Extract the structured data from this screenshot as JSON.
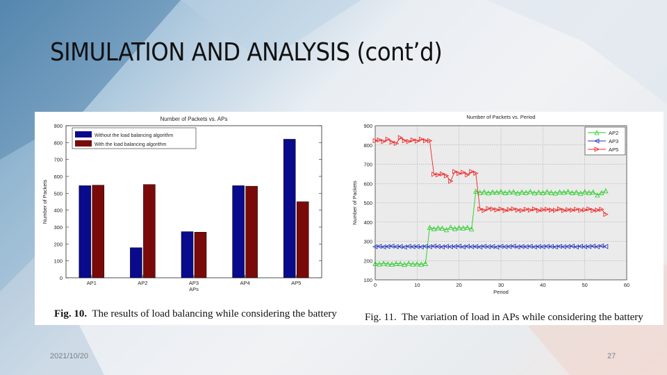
{
  "slide": {
    "title": "SIMULATION AND ANALYSIS (cont’d)",
    "date": "2021/10/20",
    "page_number": "27"
  },
  "figures": [
    {
      "label": "Fig. 10.",
      "caption": "The results of load balancing while considering the battery"
    },
    {
      "label": "Fig. 11.",
      "caption": "The variation of load in APs while considering the battery"
    }
  ],
  "chart_data": [
    {
      "type": "bar",
      "title": "Number of Packets vs. APs",
      "xlabel": "APs",
      "ylabel": "Number of Packets",
      "categories": [
        "AP1",
        "AP2",
        "AP3",
        "AP4",
        "AP5"
      ],
      "ylim": [
        0,
        900
      ],
      "yticks": [
        0,
        100,
        200,
        300,
        400,
        500,
        600,
        700,
        800,
        900
      ],
      "legend_position": "top-left",
      "series": [
        {
          "name": "Without the load balancing algorithm",
          "color": "#0a0a8c",
          "values": [
            545,
            178,
            273,
            545,
            820
          ]
        },
        {
          "name": "With the load balancing algorithm",
          "color": "#7a0a0a",
          "values": [
            548,
            552,
            270,
            542,
            450
          ]
        }
      ]
    },
    {
      "type": "line",
      "title": "Number of Packets vs. Period",
      "xlabel": "Period",
      "ylabel": "Number of Packets",
      "xlim": [
        0,
        60
      ],
      "ylim": [
        100,
        900
      ],
      "xticks": [
        0,
        10,
        20,
        30,
        40,
        50,
        60
      ],
      "yticks": [
        100,
        200,
        300,
        400,
        500,
        600,
        700,
        800,
        900
      ],
      "grid": true,
      "legend_position": "top-right",
      "series": [
        {
          "name": "AP2",
          "color": "#22cc22",
          "marker": "triangle-up",
          "x": [
            0,
            1,
            2,
            3,
            4,
            5,
            6,
            7,
            8,
            9,
            10,
            11,
            12,
            13,
            14,
            15,
            16,
            17,
            18,
            19,
            20,
            21,
            22,
            23,
            24,
            25,
            26,
            27,
            28,
            29,
            30,
            31,
            32,
            33,
            34,
            35,
            36,
            37,
            38,
            39,
            40,
            41,
            42,
            43,
            44,
            45,
            46,
            47,
            48,
            49,
            50,
            51,
            52,
            53,
            54,
            55
          ],
          "y": [
            185,
            182,
            186,
            183,
            181,
            185,
            184,
            180,
            186,
            182,
            183,
            181,
            185,
            372,
            365,
            370,
            368,
            360,
            373,
            366,
            371,
            369,
            372,
            364,
            560,
            553,
            557,
            551,
            556,
            554,
            558,
            552,
            555,
            557,
            550,
            556,
            553,
            558,
            551,
            555,
            552,
            557,
            553,
            550,
            556,
            554,
            558,
            552,
            555,
            549,
            557,
            553,
            556,
            540,
            552,
            562
          ]
        },
        {
          "name": "AP3",
          "color": "#2233bb",
          "marker": "triangle-left",
          "x": [
            0,
            1,
            2,
            3,
            4,
            5,
            6,
            7,
            8,
            9,
            10,
            11,
            12,
            13,
            14,
            15,
            16,
            17,
            18,
            19,
            20,
            21,
            22,
            23,
            24,
            25,
            26,
            27,
            28,
            29,
            30,
            31,
            32,
            33,
            34,
            35,
            36,
            37,
            38,
            39,
            40,
            41,
            42,
            43,
            44,
            45,
            46,
            47,
            48,
            49,
            50,
            51,
            52,
            53,
            54,
            55
          ],
          "y": [
            272,
            274,
            271,
            273,
            275,
            272,
            273,
            270,
            274,
            272,
            273,
            271,
            274,
            272,
            275,
            273,
            271,
            274,
            272,
            273,
            275,
            271,
            274,
            272,
            273,
            271,
            274,
            272,
            273,
            270,
            274,
            272,
            273,
            275,
            271,
            273,
            272,
            274,
            271,
            273,
            272,
            274,
            273,
            271,
            274,
            272,
            273,
            275,
            271,
            274,
            272,
            273,
            275,
            272,
            276,
            273
          ]
        },
        {
          "name": "AP5",
          "color": "#ee2222",
          "marker": "triangle-right",
          "x": [
            0,
            1,
            2,
            3,
            4,
            5,
            6,
            7,
            8,
            9,
            10,
            11,
            12,
            13,
            14,
            15,
            16,
            17,
            18,
            19,
            20,
            21,
            22,
            23,
            24,
            25,
            26,
            27,
            28,
            29,
            30,
            31,
            32,
            33,
            34,
            35,
            36,
            37,
            38,
            39,
            40,
            41,
            42,
            43,
            44,
            45,
            46,
            47,
            48,
            49,
            50,
            51,
            52,
            53,
            54,
            55
          ],
          "y": [
            822,
            826,
            818,
            830,
            815,
            808,
            838,
            822,
            818,
            826,
            820,
            830,
            822,
            822,
            648,
            645,
            650,
            640,
            612,
            662,
            652,
            658,
            645,
            662,
            653,
            467,
            460,
            470,
            468,
            463,
            468,
            460,
            465,
            468,
            462,
            460,
            466,
            462,
            468,
            460,
            464,
            466,
            462,
            461,
            468,
            460,
            464,
            462,
            466,
            461,
            463,
            468,
            460,
            462,
            466,
            440
          ]
        }
      ]
    }
  ]
}
